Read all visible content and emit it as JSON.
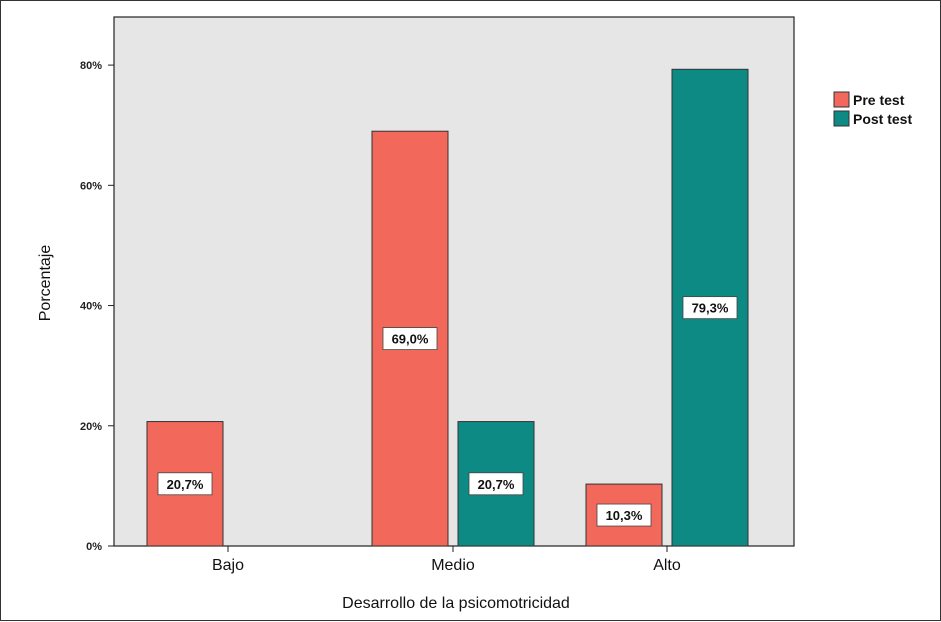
{
  "chart_data": {
    "type": "bar",
    "categories": [
      "Bajo",
      "Medio",
      "Alto"
    ],
    "series": [
      {
        "name": "Pre test",
        "values": [
          20.7,
          69.0,
          10.3
        ],
        "labels": [
          "20,7%",
          "69,0%",
          "10,3%"
        ]
      },
      {
        "name": "Post test",
        "values": [
          0,
          20.7,
          79.3
        ],
        "labels": [
          "",
          "20,7%",
          "79,3%"
        ]
      }
    ],
    "xlabel": "Desarrollo de la psicomotricidad",
    "ylabel": "Porcentaje",
    "ylim": [
      0,
      88
    ],
    "yticks": [
      0,
      20,
      40,
      60,
      80
    ],
    "ytick_labels": [
      "0%",
      "20%",
      "40%",
      "60%",
      "80%"
    ],
    "grid": false,
    "legend_position": "right",
    "colors": {
      "plot_background": "#e6e6e6",
      "Pre test": "#f2685a",
      "Post test": "#0e8a84"
    }
  }
}
